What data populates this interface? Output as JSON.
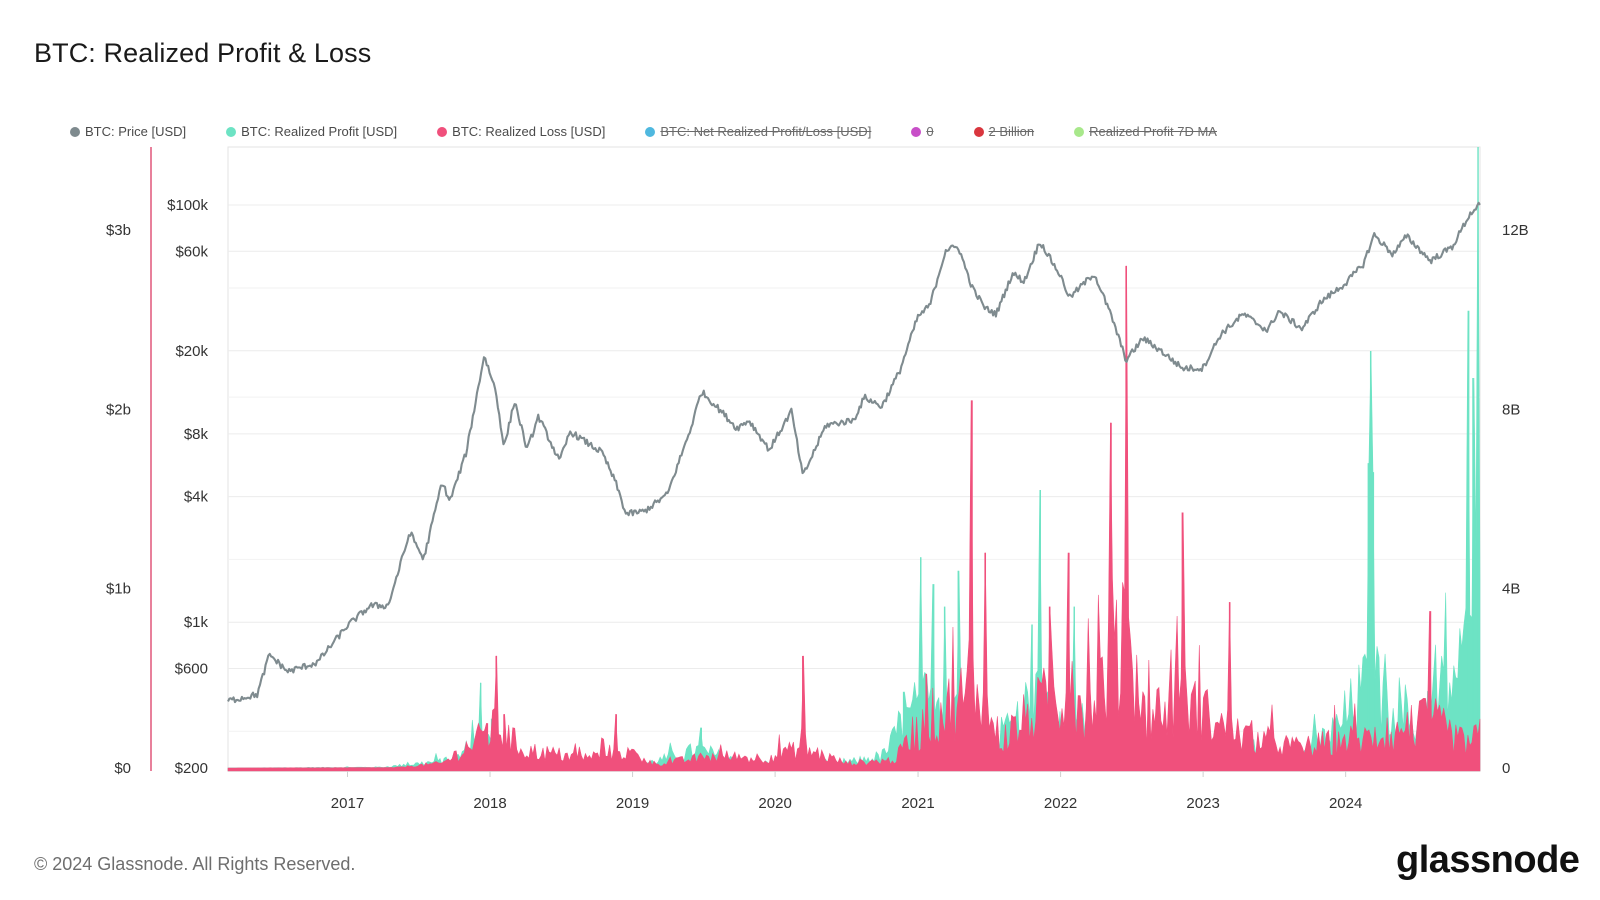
{
  "title": "BTC: Realized Profit & Loss",
  "footer": "© 2024 Glassnode. All Rights Reserved.",
  "logo_text": "glassnode",
  "colors": {
    "price": "#8b9598",
    "profit": "#6de3c4",
    "loss": "#f0507c",
    "net": "#4fb8df",
    "zero": "#c84fc8",
    "two_billion": "#d9363e",
    "ma": "#a8e88b",
    "left_axis_line": "#e0567a",
    "grid": "#ececec"
  },
  "legend": [
    {
      "label": "BTC: Price [USD]",
      "color": "#7e8a8e",
      "active": true
    },
    {
      "label": "BTC: Realized Profit [USD]",
      "color": "#6de3c4",
      "active": true
    },
    {
      "label": "BTC: Realized Loss [USD]",
      "color": "#f0507c",
      "active": true
    },
    {
      "label": "BTC: Net Realized Profit/Loss [USD]",
      "color": "#4fb8df",
      "active": false
    },
    {
      "label": "0",
      "color": "#c84fc8",
      "active": false
    },
    {
      "label": "2 Billion",
      "color": "#d9363e",
      "active": false
    },
    {
      "label": "Realized Profit 7D MA",
      "color": "#a8e88b",
      "active": false
    }
  ],
  "chart_data": {
    "type": "line",
    "title": "BTC: Realized Profit & Loss",
    "x_range": [
      "2016-03-01",
      "2024-12-10"
    ],
    "x_ticks": [
      "2017",
      "2018",
      "2019",
      "2020",
      "2021",
      "2022",
      "2023",
      "2024"
    ],
    "axes": {
      "left_outer": {
        "ticks": [
          "$0",
          "$1b",
          "$2b",
          "$3b"
        ],
        "values": [
          0,
          1000000000,
          2000000000,
          3000000000
        ]
      },
      "left_inner_price_log": {
        "ticks": [
          "$200",
          "$600",
          "$1k",
          "$4k",
          "$8k",
          "$20k",
          "$60k",
          "$100k"
        ],
        "values": [
          200,
          600,
          1000,
          4000,
          8000,
          20000,
          60000,
          100000
        ],
        "scale": "log"
      },
      "right": {
        "ticks": [
          "0",
          "4B",
          "8B",
          "12B"
        ],
        "values": [
          0,
          4000000000,
          8000000000,
          12000000000
        ]
      }
    },
    "grid": true,
    "legend_position": "top",
    "series": [
      {
        "name": "BTC: Price [USD]",
        "type": "line",
        "scale": "log",
        "points": [
          [
            "2016-03-01",
            420
          ],
          [
            "2016-05-15",
            450
          ],
          [
            "2016-06-15",
            700
          ],
          [
            "2016-08-01",
            580
          ],
          [
            "2016-10-15",
            640
          ],
          [
            "2016-12-31",
            960
          ],
          [
            "2017-03-01",
            1200
          ],
          [
            "2017-04-15",
            1200
          ],
          [
            "2017-06-10",
            2700
          ],
          [
            "2017-07-15",
            2000
          ],
          [
            "2017-08-31",
            4700
          ],
          [
            "2017-09-20",
            3800
          ],
          [
            "2017-11-01",
            6500
          ],
          [
            "2017-12-17",
            19000
          ],
          [
            "2018-01-15",
            13000
          ],
          [
            "2018-02-06",
            6900
          ],
          [
            "2018-03-05",
            11500
          ],
          [
            "2018-04-06",
            6700
          ],
          [
            "2018-05-05",
            9700
          ],
          [
            "2018-06-28",
            5900
          ],
          [
            "2018-07-25",
            8200
          ],
          [
            "2018-10-15",
            6500
          ],
          [
            "2018-11-20",
            4600
          ],
          [
            "2018-12-15",
            3300
          ],
          [
            "2019-01-31",
            3400
          ],
          [
            "2019-03-31",
            4100
          ],
          [
            "2019-05-31",
            8600
          ],
          [
            "2019-06-26",
            12800
          ],
          [
            "2019-08-15",
            10300
          ],
          [
            "2019-09-25",
            8500
          ],
          [
            "2019-10-26",
            9300
          ],
          [
            "2019-12-17",
            6700
          ],
          [
            "2020-02-12",
            10300
          ],
          [
            "2020-03-12",
            5000
          ],
          [
            "2020-05-10",
            8800
          ],
          [
            "2020-07-20",
            9300
          ],
          [
            "2020-08-17",
            12000
          ],
          [
            "2020-09-30",
            10800
          ],
          [
            "2020-11-15",
            16000
          ],
          [
            "2020-12-31",
            29000
          ],
          [
            "2021-01-31",
            33000
          ],
          [
            "2021-03-13",
            61000
          ],
          [
            "2021-04-14",
            63000
          ],
          [
            "2021-05-20",
            40000
          ],
          [
            "2021-06-22",
            32000
          ],
          [
            "2021-07-20",
            30000
          ],
          [
            "2021-08-31",
            47000
          ],
          [
            "2021-09-30",
            43000
          ],
          [
            "2021-11-09",
            67000
          ],
          [
            "2021-12-31",
            46000
          ],
          [
            "2022-01-24",
            36000
          ],
          [
            "2022-03-28",
            47000
          ],
          [
            "2022-05-12",
            29000
          ],
          [
            "2022-06-18",
            18000
          ],
          [
            "2022-07-31",
            23000
          ],
          [
            "2022-09-15",
            20000
          ],
          [
            "2022-11-09",
            16500
          ],
          [
            "2022-12-31",
            16500
          ],
          [
            "2023-02-15",
            24000
          ],
          [
            "2023-04-14",
            30000
          ],
          [
            "2023-06-15",
            25000
          ],
          [
            "2023-07-13",
            31000
          ],
          [
            "2023-09-11",
            25500
          ],
          [
            "2023-10-31",
            34500
          ],
          [
            "2023-12-31",
            42000
          ],
          [
            "2024-02-15",
            52000
          ],
          [
            "2024-03-14",
            72000
          ],
          [
            "2024-05-01",
            58000
          ],
          [
            "2024-06-05",
            71000
          ],
          [
            "2024-08-05",
            54000
          ],
          [
            "2024-09-30",
            63000
          ],
          [
            "2024-11-12",
            89000
          ],
          [
            "2024-12-05",
            100000
          ],
          [
            "2024-12-10",
            97000
          ]
        ]
      },
      {
        "name": "BTC: Realized Profit [USD]",
        "type": "area",
        "peaks": [
          [
            "2017-12-08",
            1.9
          ],
          [
            "2018-01-05",
            1.1
          ],
          [
            "2019-06-26",
            0.9
          ],
          [
            "2020-11-25",
            1.7
          ],
          [
            "2021-01-08",
            4.7
          ],
          [
            "2021-02-10",
            4.1
          ],
          [
            "2021-03-10",
            3.6
          ],
          [
            "2021-04-14",
            4.4
          ],
          [
            "2021-10-20",
            3.2
          ],
          [
            "2021-11-10",
            6.2
          ],
          [
            "2022-02-05",
            3.6
          ],
          [
            "2024-02-28",
            6.8
          ],
          [
            "2024-03-05",
            9.3
          ],
          [
            "2024-03-12",
            6.6
          ],
          [
            "2024-11-11",
            10.2
          ],
          [
            "2024-11-22",
            8.7
          ],
          [
            "2024-12-05",
            14.0
          ]
        ]
      },
      {
        "name": "BTC: Realized Loss [USD]",
        "type": "area",
        "peaks": [
          [
            "2017-12-25",
            1.0
          ],
          [
            "2018-01-17",
            2.5
          ],
          [
            "2018-02-06",
            1.2
          ],
          [
            "2018-11-20",
            1.2
          ],
          [
            "2020-03-12",
            2.5
          ],
          [
            "2021-01-22",
            2.1
          ],
          [
            "2021-05-19",
            8.2
          ],
          [
            "2021-06-22",
            4.8
          ],
          [
            "2021-12-04",
            3.6
          ],
          [
            "2022-01-22",
            4.8
          ],
          [
            "2022-05-10",
            7.7
          ],
          [
            "2022-06-18",
            11.2
          ],
          [
            "2022-11-09",
            5.7
          ],
          [
            "2023-03-10",
            3.7
          ],
          [
            "2024-08-05",
            3.5
          ]
        ]
      }
    ]
  }
}
